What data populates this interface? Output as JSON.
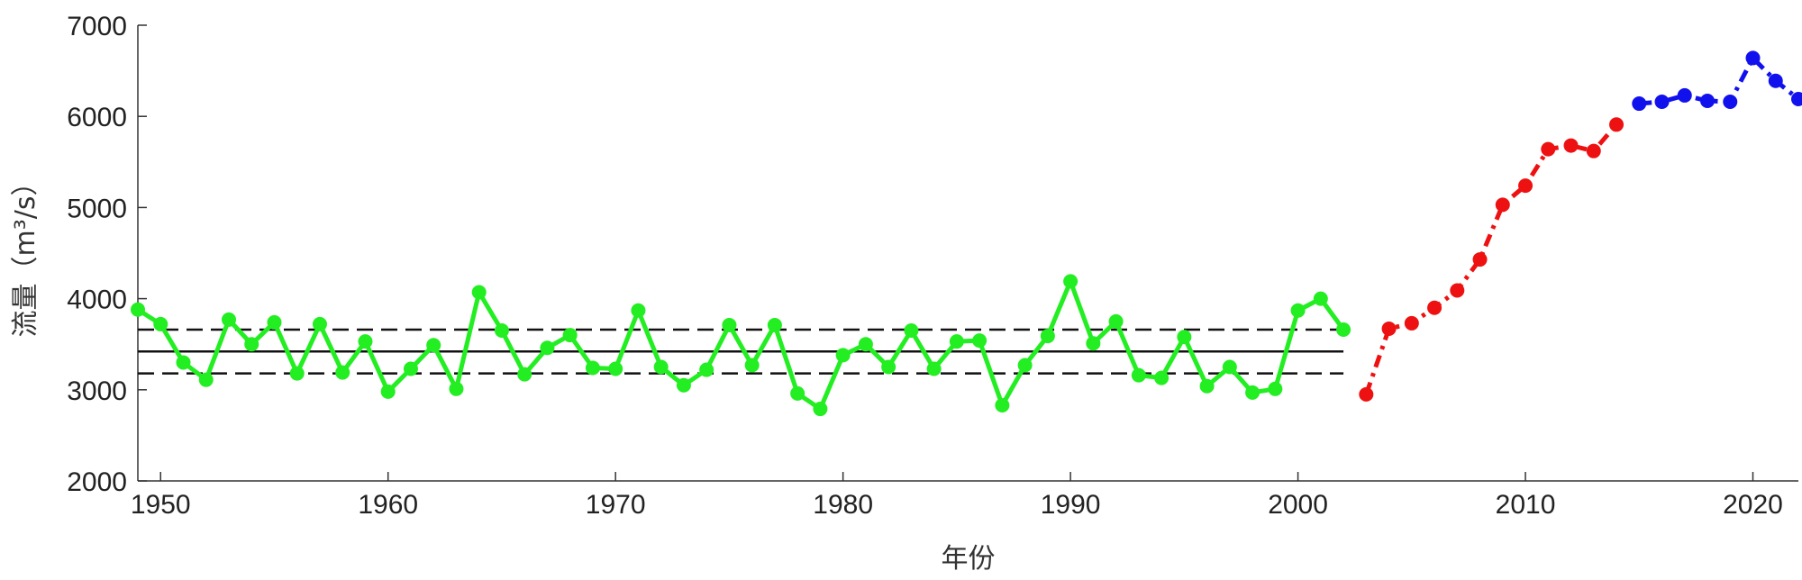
{
  "chart_data": {
    "type": "line",
    "title": "",
    "xlabel": "年份",
    "ylabel": "流量（m³/s）",
    "xlim": [
      1949,
      2022
    ],
    "ylim": [
      2000,
      7000
    ],
    "xticks": [
      1950,
      1960,
      1970,
      1980,
      1990,
      2000,
      2010,
      2020
    ],
    "yticks": [
      2000,
      3000,
      4000,
      5000,
      6000,
      7000
    ],
    "grid": false,
    "series": [
      {
        "color": "#22ee22",
        "line_style": "solid",
        "marker": "circle",
        "x": [
          1949,
          1950,
          1951,
          1952,
          1953,
          1954,
          1955,
          1956,
          1957,
          1958,
          1959,
          1960,
          1961,
          1962,
          1963,
          1964,
          1965,
          1966,
          1967,
          1968,
          1969,
          1970,
          1971,
          1972,
          1973,
          1974,
          1975,
          1976,
          1977,
          1978,
          1979,
          1980,
          1981,
          1982,
          1983,
          1984,
          1985,
          1986,
          1987,
          1988,
          1989,
          1990,
          1991,
          1992,
          1993,
          1994,
          1995,
          1996,
          1997,
          1998,
          1999,
          2000,
          2001,
          2002
        ],
        "y": [
          3880,
          3720,
          3300,
          3110,
          3770,
          3500,
          3740,
          3180,
          3720,
          3190,
          3530,
          2980,
          3230,
          3490,
          3010,
          4070,
          3650,
          3170,
          3460,
          3600,
          3240,
          3230,
          3870,
          3250,
          3050,
          3220,
          3710,
          3270,
          3710,
          2960,
          2790,
          3380,
          3500,
          3250,
          3650,
          3230,
          3530,
          3540,
          2830,
          3270,
          3590,
          4190,
          3510,
          3750,
          3160,
          3130,
          3580,
          3040,
          3250,
          2970,
          3010,
          3870,
          4000,
          3660
        ]
      },
      {
        "color": "#ee1111",
        "line_style": "dashdot",
        "marker": "circle",
        "x": [
          2003,
          2004,
          2005,
          2006,
          2007,
          2008,
          2009,
          2010,
          2011,
          2012,
          2013,
          2014
        ],
        "y": [
          2950,
          3670,
          3730,
          3900,
          4090,
          4430,
          5030,
          5240,
          5640,
          5680,
          5620,
          5910
        ]
      },
      {
        "color": "#1111ee",
        "line_style": "dashdot",
        "marker": "circle",
        "x": [
          2015,
          2016,
          2017,
          2018,
          2019,
          2020,
          2021,
          2022
        ],
        "y": [
          6140,
          6160,
          6230,
          6170,
          6160,
          6640,
          6390,
          6190
        ]
      }
    ],
    "reference_lines": [
      {
        "y": 3420,
        "style": "solid",
        "color": "#111111",
        "x_range": [
          1949,
          2002
        ]
      },
      {
        "y": 3660,
        "style": "dashed",
        "color": "#111111",
        "x_range": [
          1949,
          2002
        ]
      },
      {
        "y": 3180,
        "style": "dashed",
        "color": "#111111",
        "x_range": [
          1949,
          2002
        ]
      }
    ]
  }
}
